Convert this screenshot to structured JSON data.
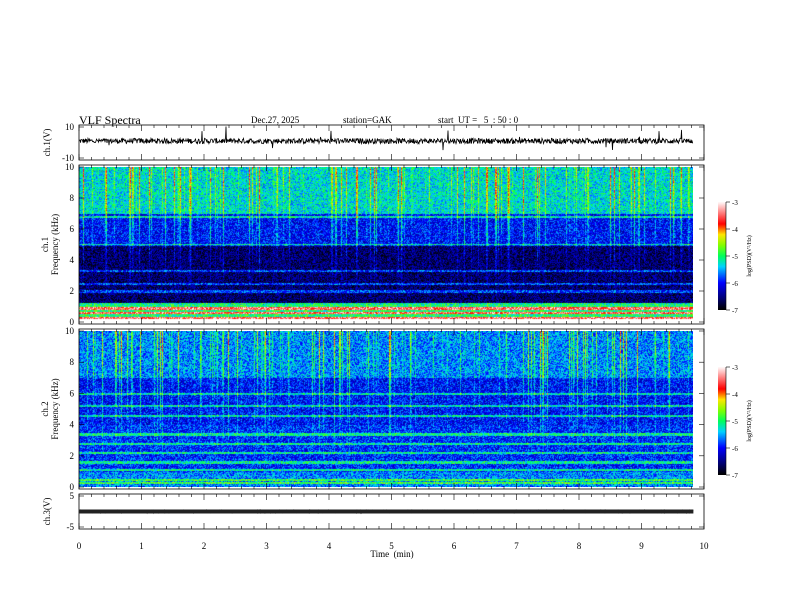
{
  "header": {
    "title": "VLF Spectra",
    "date": "Dec.27, 2025",
    "station": "station=GAK",
    "start": "start  UT =   5  : 50 : 0"
  },
  "chart_data": [
    {
      "type": "line",
      "name": "ch1 waveform",
      "ylabel": "ch.1(V)",
      "ylim": [
        -10,
        10
      ],
      "yticks": [
        "10",
        "-10"
      ],
      "xlim": [
        0,
        10
      ],
      "data_end_min": 9.83,
      "mean_value": 1,
      "color": "#000000"
    },
    {
      "type": "heatmap",
      "name": "ch1 spectrogram",
      "ylabel": "ch.1\nFrequency  (kHz)",
      "ylim": [
        0,
        10
      ],
      "yticks": [
        "0",
        "2",
        "4",
        "6",
        "8",
        "10"
      ],
      "xlim": [
        0,
        10
      ],
      "data_end_min": 9.83,
      "colorbar": {
        "label": "log(PSD)(V²/Hz)",
        "range": [
          -7,
          -3
        ],
        "ticks": [
          "-3",
          "-4",
          "-5",
          "-6",
          "-7"
        ]
      },
      "persistent_lines_khz": [
        0.3,
        0.6,
        0.9,
        1.2,
        2.0,
        2.5,
        3.3,
        5.0,
        6.8
      ]
    },
    {
      "type": "heatmap",
      "name": "ch2 spectrogram",
      "ylabel": "ch.2\nFrequency  (kHz)",
      "ylim": [
        0,
        10
      ],
      "yticks": [
        "0",
        "2",
        "4",
        "6",
        "8",
        "10"
      ],
      "xlim": [
        0,
        10
      ],
      "data_end_min": 9.83,
      "colorbar": {
        "label": "log(PSD)(V²/Hz)",
        "range": [
          -7,
          -3
        ],
        "ticks": [
          "-3",
          "-4",
          "-5",
          "-6",
          "-7"
        ]
      },
      "persistent_lines_khz": [
        0.3,
        0.5,
        1.1,
        1.6,
        2.2,
        2.8,
        3.4,
        4.6,
        5.2,
        6.0
      ]
    },
    {
      "type": "line",
      "name": "ch3 waveform",
      "ylabel": "ch.3(V)",
      "ylim": [
        -5,
        5
      ],
      "yticks": [
        "5",
        "-5"
      ],
      "xlim": [
        0,
        10
      ],
      "data_end_min": 9.83,
      "mean_value": 0,
      "color": "#000000"
    }
  ],
  "xaxis": {
    "label": "Time  (min)",
    "ticks": [
      "0",
      "1",
      "2",
      "3",
      "4",
      "5",
      "6",
      "7",
      "8",
      "9",
      "10"
    ]
  }
}
